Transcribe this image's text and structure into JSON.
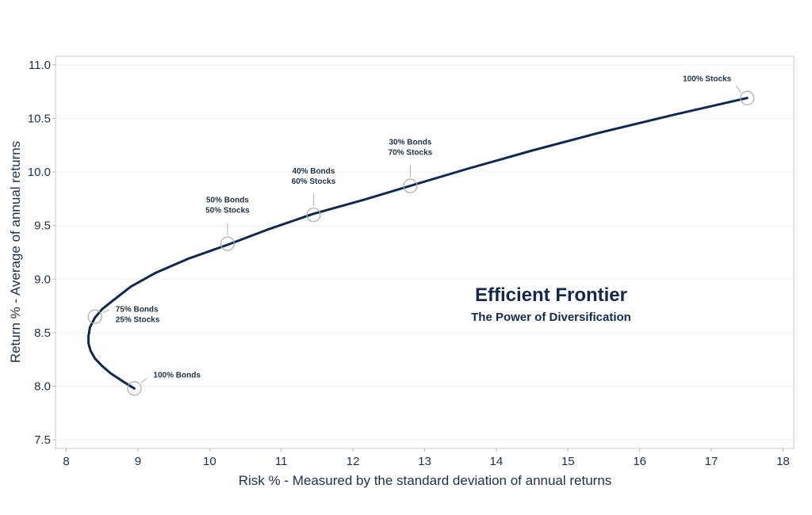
{
  "chart_data": {
    "type": "line",
    "title": "Efficient Frontier",
    "subtitle": "The Power of Diversification",
    "xlabel": "Risk % - Measured by the standard deviation of annual returns",
    "ylabel": "Return % - Average of annual returns",
    "xlim": [
      7.85,
      18.15
    ],
    "ylim": [
      7.42,
      11.08
    ],
    "xticks": [
      8,
      9,
      10,
      11,
      12,
      13,
      14,
      15,
      16,
      17,
      18
    ],
    "yticks": [
      "7.5",
      "8.0",
      "8.5",
      "9.0",
      "9.5",
      "10.0",
      "10.5",
      "11.0"
    ],
    "grid": "horizontal",
    "line_color": "#14284b",
    "series": [
      {
        "x": [
          8.95,
          8.78,
          8.62,
          8.5,
          8.4,
          8.34,
          8.31,
          8.31,
          8.33,
          8.4,
          8.5,
          8.65,
          8.9,
          9.25,
          9.7,
          10.25,
          10.8,
          11.45,
          12.15,
          12.8,
          13.6,
          14.5,
          15.4,
          16.45,
          17.5
        ],
        "y": [
          7.98,
          8.05,
          8.12,
          8.19,
          8.26,
          8.33,
          8.4,
          8.47,
          8.55,
          8.64,
          8.72,
          8.8,
          8.93,
          9.06,
          9.19,
          9.32,
          9.46,
          9.61,
          9.74,
          9.87,
          10.03,
          10.2,
          10.36,
          10.53,
          10.69
        ]
      }
    ],
    "portfolios": [
      {
        "lines": [
          "100% Bonds"
        ],
        "x": 8.95,
        "y": 7.98
      },
      {
        "lines": [
          "75% Bonds",
          "25% Stocks"
        ],
        "x": 8.4,
        "y": 8.65
      },
      {
        "lines": [
          "50% Bonds",
          "50% Stocks"
        ],
        "x": 10.25,
        "y": 9.33
      },
      {
        "lines": [
          "40% Bonds",
          "60% Stocks"
        ],
        "x": 11.45,
        "y": 9.6
      },
      {
        "lines": [
          "30% Bonds",
          "70% Stocks"
        ],
        "x": 12.8,
        "y": 9.87
      },
      {
        "lines": [
          "100% Stocks"
        ],
        "x": 17.5,
        "y": 10.69
      }
    ]
  }
}
